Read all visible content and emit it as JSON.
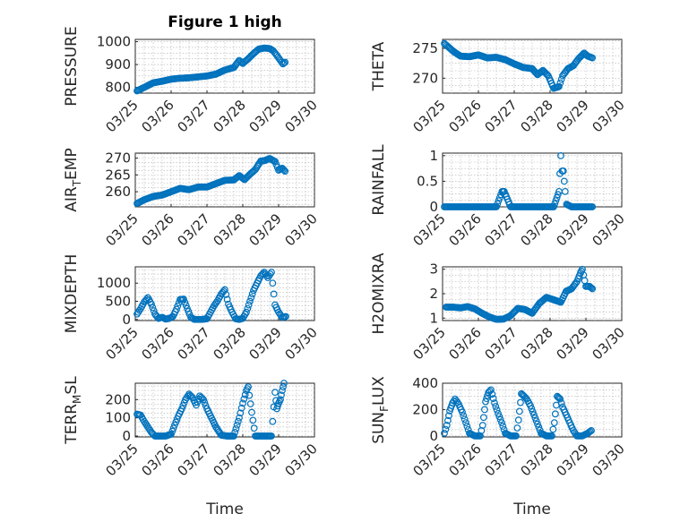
{
  "figure": {
    "title": "Figure 1 high",
    "time_ticks": [
      "03/25",
      "03/26",
      "03/27",
      "03/28",
      "03/29",
      "03/30"
    ],
    "time_label": "Time"
  },
  "chart_data": [
    {
      "type": "scatter",
      "ylabel": "PRESSURE",
      "ylim": [
        775,
        1010
      ],
      "yticks": [
        800,
        900,
        1000
      ],
      "grid": true,
      "x": [
        0.05,
        0.25,
        0.5,
        0.75,
        1.0,
        1.25,
        1.5,
        1.75,
        2.0,
        2.25,
        2.5,
        2.75,
        2.9,
        3.0,
        3.15,
        3.3,
        3.45,
        3.6,
        3.75,
        3.85,
        3.95,
        4.05,
        4.12,
        4.18
      ],
      "y": [
        785,
        800,
        820,
        827,
        836,
        840,
        842,
        846,
        850,
        858,
        876,
        887,
        918,
        905,
        925,
        948,
        968,
        972,
        970,
        960,
        940,
        918,
        903,
        910
      ]
    },
    {
      "type": "scatter",
      "ylabel": "THETA",
      "ylim": [
        267.5,
        276.5
      ],
      "yticks": [
        270,
        275
      ],
      "grid": true,
      "x": [
        0.05,
        0.15,
        0.3,
        0.5,
        0.75,
        1.0,
        1.25,
        1.5,
        1.75,
        2.0,
        2.25,
        2.5,
        2.65,
        2.8,
        2.95,
        3.1,
        3.25,
        3.35,
        3.5,
        3.65,
        3.8,
        3.95,
        4.05,
        4.18
      ],
      "y": [
        275.8,
        275.3,
        274.5,
        273.7,
        273.6,
        273.9,
        273.4,
        273.5,
        273.1,
        272.4,
        271.8,
        271.6,
        270.6,
        271.3,
        270.4,
        268.3,
        268.6,
        270.4,
        271.6,
        272.1,
        273.3,
        274.2,
        273.7,
        273.4
      ]
    },
    {
      "type": "scatter",
      "ylabel": "AIR",
      "ylabel_sub": "T",
      "ylabel_tail": "EMP",
      "ylim": [
        255.5,
        271.5
      ],
      "yticks": [
        260,
        265,
        270
      ],
      "grid": true,
      "x": [
        0.05,
        0.25,
        0.5,
        0.75,
        1.0,
        1.25,
        1.5,
        1.75,
        2.0,
        2.25,
        2.5,
        2.75,
        2.9,
        3.05,
        3.2,
        3.35,
        3.5,
        3.62,
        3.75,
        3.9,
        4.0,
        4.1,
        4.18
      ],
      "y": [
        256.5,
        257.6,
        258.6,
        259.0,
        260.0,
        261.0,
        260.6,
        261.4,
        261.4,
        262.4,
        263.4,
        263.5,
        264.8,
        263.6,
        265.2,
        266.6,
        269.1,
        269.3,
        269.9,
        269.0,
        266.4,
        267.0,
        266.1
      ]
    },
    {
      "type": "scatter",
      "ylabel": "RAINFALL",
      "ylim": [
        0,
        1.05
      ],
      "yticks": [
        0,
        0.5,
        1
      ],
      "grid": true,
      "x": [
        0.05,
        0.3,
        0.6,
        0.9,
        1.2,
        1.5,
        1.66,
        1.72,
        1.9,
        2.2,
        2.5,
        2.8,
        3.1,
        3.25,
        3.3,
        3.34,
        3.37,
        3.42,
        3.46,
        3.6,
        3.9,
        4.18
      ],
      "y": [
        0,
        0,
        0,
        0,
        0,
        0,
        0.3,
        0.3,
        0,
        0,
        0,
        0,
        0,
        0.3,
        1.0,
        0.7,
        0.7,
        0.3,
        0.05,
        0,
        0,
        0
      ]
    },
    {
      "type": "scatter",
      "ylabel": "MIXDEPTH",
      "ylim": [
        -30,
        1450
      ],
      "yticks": [
        0,
        500,
        1000
      ],
      "grid": true,
      "x": [
        0.05,
        0.15,
        0.25,
        0.35,
        0.45,
        0.55,
        0.65,
        0.75,
        0.85,
        0.95,
        1.05,
        1.15,
        1.25,
        1.35,
        1.45,
        1.55,
        1.65,
        1.75,
        1.85,
        2.0,
        2.1,
        2.2,
        2.3,
        2.4,
        2.5,
        2.6,
        2.7,
        2.8,
        2.9,
        3.0,
        3.1,
        3.2,
        3.3,
        3.4,
        3.5,
        3.6,
        3.7,
        3.8,
        3.9,
        4.0,
        4.1,
        4.2
      ],
      "y": [
        150,
        300,
        480,
        600,
        420,
        150,
        30,
        60,
        10,
        30,
        80,
        280,
        550,
        560,
        300,
        60,
        0,
        0,
        0,
        20,
        200,
        380,
        520,
        700,
        820,
        420,
        200,
        20,
        0,
        30,
        200,
        500,
        800,
        1000,
        1200,
        1300,
        1150,
        1300,
        400,
        200,
        60,
        80
      ]
    },
    {
      "type": "scatter",
      "ylabel": "H2OMIXRA",
      "ylim": [
        0.9,
        3.1
      ],
      "yticks": [
        1,
        2,
        3
      ],
      "grid": true,
      "x": [
        0.1,
        0.3,
        0.5,
        0.7,
        0.9,
        1.1,
        1.3,
        1.5,
        1.7,
        1.9,
        2.1,
        2.3,
        2.5,
        2.7,
        2.9,
        3.1,
        3.3,
        3.45,
        3.6,
        3.75,
        3.85,
        3.9,
        4.0,
        4.1,
        4.18
      ],
      "y": [
        1.45,
        1.45,
        1.42,
        1.47,
        1.38,
        1.2,
        1.05,
        0.95,
        0.96,
        1.1,
        1.4,
        1.35,
        1.2,
        1.6,
        1.85,
        1.75,
        1.65,
        2.1,
        2.2,
        2.5,
        2.85,
        3.0,
        2.3,
        2.3,
        2.2
      ]
    },
    {
      "type": "scatter",
      "ylabel": "TERR",
      "ylabel_sub": "M",
      "ylabel_tail": "SL",
      "ylim": [
        -5,
        290
      ],
      "yticks": [
        0,
        100,
        200
      ],
      "grid": true,
      "x": [
        0.05,
        0.15,
        0.25,
        0.35,
        0.45,
        0.55,
        0.7,
        0.85,
        1.0,
        1.1,
        1.2,
        1.3,
        1.4,
        1.5,
        1.6,
        1.7,
        1.8,
        1.9,
        2.0,
        2.1,
        2.25,
        2.4,
        2.55,
        2.6,
        2.75,
        2.9,
        3.0,
        3.1,
        3.15,
        3.25,
        3.35,
        3.5,
        3.65,
        3.8,
        3.9,
        3.95,
        4.0,
        4.05,
        4.1,
        4.15
      ],
      "y": [
        120,
        115,
        80,
        50,
        20,
        0,
        0,
        0,
        10,
        60,
        110,
        150,
        200,
        230,
        210,
        170,
        220,
        200,
        150,
        110,
        50,
        5,
        0,
        0,
        0,
        100,
        180,
        250,
        270,
        130,
        0,
        0,
        0,
        0,
        240,
        150,
        180,
        200,
        250,
        290
      ]
    },
    {
      "type": "scatter",
      "ylabel": "SUN",
      "ylabel_sub": "F",
      "ylabel_tail": "LUX",
      "ylim": [
        -8,
        400
      ],
      "yticks": [
        0,
        200,
        400
      ],
      "grid": true,
      "x": [
        0.05,
        0.12,
        0.2,
        0.28,
        0.35,
        0.45,
        0.55,
        0.65,
        0.75,
        0.9,
        1.05,
        1.12,
        1.2,
        1.28,
        1.35,
        1.45,
        1.55,
        1.65,
        1.75,
        1.9,
        2.05,
        2.12,
        2.2,
        2.28,
        2.35,
        2.45,
        2.55,
        2.65,
        2.75,
        2.9,
        3.05,
        3.12,
        3.2,
        3.28,
        3.35,
        3.45,
        3.55,
        3.65,
        3.75,
        3.9,
        4.05,
        4.15
      ],
      "y": [
        20,
        80,
        190,
        250,
        280,
        240,
        180,
        100,
        20,
        0,
        0,
        80,
        260,
        330,
        350,
        250,
        170,
        100,
        20,
        0,
        0,
        120,
        320,
        300,
        280,
        230,
        160,
        90,
        20,
        0,
        0,
        100,
        300,
        280,
        220,
        160,
        100,
        40,
        0,
        0,
        20,
        40
      ]
    }
  ]
}
